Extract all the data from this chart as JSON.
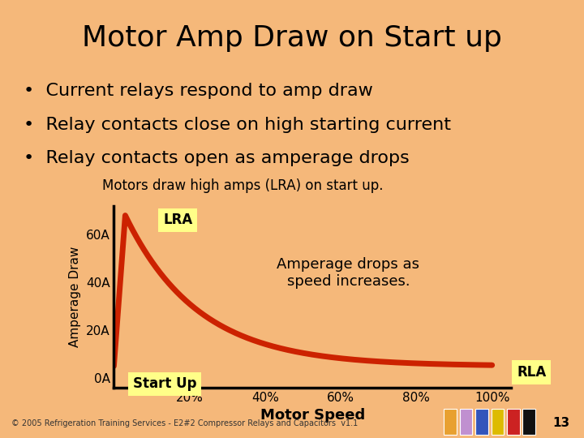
{
  "title": "Motor Amp Draw on Start up",
  "title_fontsize": 26,
  "title_bg_color": "#F0A060",
  "slide_bg_color": "#F5B87A",
  "bullets": [
    "Current relays respond to amp draw",
    "Relay contacts close on high starting current",
    "Relay contacts open as amperage drops"
  ],
  "bullet_fontsize": 16,
  "chart_subtitle": "Motors draw high amps (LRA) on start up.",
  "chart_subtitle_fontsize": 12,
  "ytick_labels": [
    "0A",
    "20A",
    "40A",
    "60A"
  ],
  "yvalues": [
    0,
    20,
    40,
    60
  ],
  "xtick_labels": [
    "20%",
    "40%",
    "60%",
    "80%",
    "100%"
  ],
  "xlabel": "Motor Speed",
  "ylabel": "Amperage Draw",
  "curve_color": "#CC2200",
  "curve_linewidth": 5,
  "annotation_text": "Amperage drops as\nspeed increases.",
  "annotation_fontsize": 13,
  "lra_label": "LRA",
  "rla_label": "RLA",
  "startup_label": "Start Up",
  "label_bg_color": "#FFFF88",
  "label_fontsize": 12,
  "footer_text": "© 2005 Refrigeration Training Services - E2#2 Compressor Relays and Capacitors  v1.1",
  "footer_fontsize": 7,
  "page_number": "13",
  "icon_colors": [
    "#E8A030",
    "#C090D0",
    "#3355BB",
    "#DDBB00",
    "#CC2222",
    "#111111"
  ]
}
